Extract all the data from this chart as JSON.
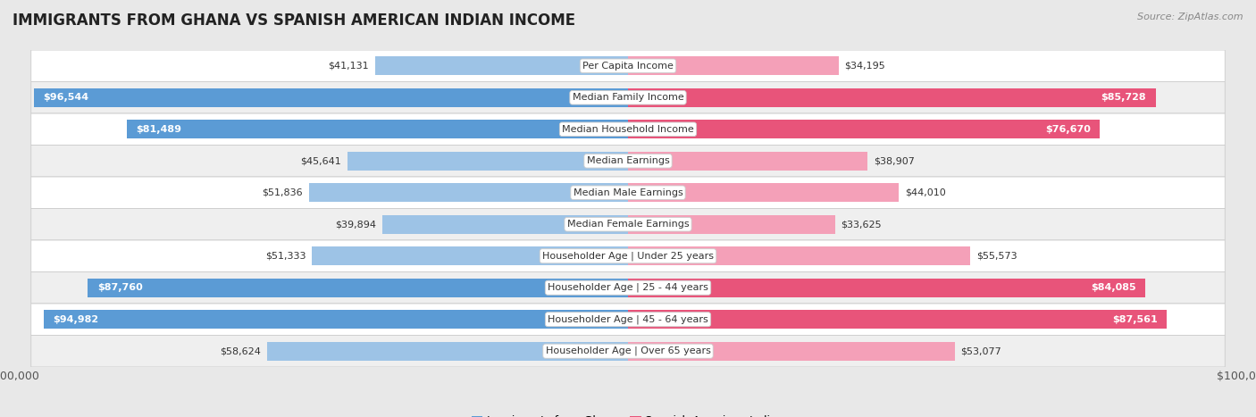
{
  "title": "IMMIGRANTS FROM GHANA VS SPANISH AMERICAN INDIAN INCOME",
  "source": "Source: ZipAtlas.com",
  "categories": [
    "Per Capita Income",
    "Median Family Income",
    "Median Household Income",
    "Median Earnings",
    "Median Male Earnings",
    "Median Female Earnings",
    "Householder Age | Under 25 years",
    "Householder Age | 25 - 44 years",
    "Householder Age | 45 - 64 years",
    "Householder Age | Over 65 years"
  ],
  "ghana_values": [
    41131,
    96544,
    81489,
    45641,
    51836,
    39894,
    51333,
    87760,
    94982,
    58624
  ],
  "spanish_values": [
    34195,
    85728,
    76670,
    38907,
    44010,
    33625,
    55573,
    84085,
    87561,
    53077
  ],
  "ghana_labels": [
    "$41,131",
    "$96,544",
    "$81,489",
    "$45,641",
    "$51,836",
    "$39,894",
    "$51,333",
    "$87,760",
    "$94,982",
    "$58,624"
  ],
  "spanish_labels": [
    "$34,195",
    "$85,728",
    "$76,670",
    "$38,907",
    "$44,010",
    "$33,625",
    "$55,573",
    "$84,085",
    "$87,561",
    "$53,077"
  ],
  "max_value": 100000,
  "ghana_color_full": "#5b9bd5",
  "ghana_color_light": "#9dc3e6",
  "spanish_color_full": "#e8547a",
  "spanish_color_light": "#f4a0b8",
  "bar_height": 0.58,
  "background_color": "#e8e8e8",
  "row_bg_colors": [
    "#ffffff",
    "#efefef"
  ],
  "legend_ghana": "Immigrants from Ghana",
  "legend_spanish": "Spanish American Indian",
  "ghana_threshold": 70000,
  "spanish_threshold": 70000
}
